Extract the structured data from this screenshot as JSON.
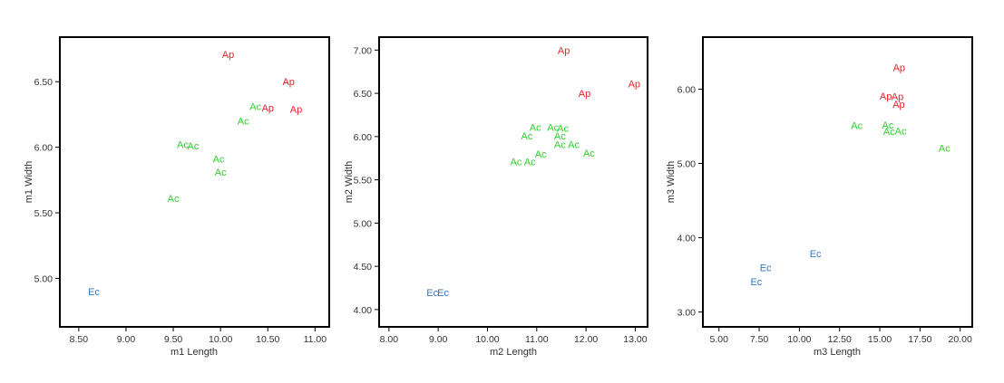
{
  "colors": {
    "Ap": "#e8212a",
    "Ac": "#2ecf2e",
    "Ec": "#2f78c8"
  },
  "chart_data": [
    {
      "type": "scatter",
      "xlabel": "m1 Length",
      "ylabel": "m1 Width",
      "xlim": [
        8.3,
        11.15
      ],
      "ylim": [
        4.63,
        6.84
      ],
      "xticks": [
        8.5,
        9.0,
        9.5,
        10.0,
        10.5,
        11.0
      ],
      "xtick_labels": [
        "8.50",
        "9.00",
        "9.50",
        "10.00",
        "10.50",
        "11.00"
      ],
      "yticks": [
        5.0,
        5.5,
        6.0,
        6.5
      ],
      "ytick_labels": [
        "5.00",
        "5.50",
        "6.00",
        "6.50"
      ],
      "points": [
        {
          "label": "Ap",
          "x": 10.08,
          "y": 6.71
        },
        {
          "label": "Ap",
          "x": 10.72,
          "y": 6.5
        },
        {
          "label": "Ap",
          "x": 10.5,
          "y": 6.3
        },
        {
          "label": "Ap",
          "x": 10.8,
          "y": 6.29
        },
        {
          "label": "Ac",
          "x": 10.37,
          "y": 6.31
        },
        {
          "label": "Ac",
          "x": 10.24,
          "y": 6.2
        },
        {
          "label": "Ac",
          "x": 9.6,
          "y": 6.02
        },
        {
          "label": "Ac",
          "x": 9.71,
          "y": 6.01
        },
        {
          "label": "Ac",
          "x": 9.98,
          "y": 5.91
        },
        {
          "label": "Ac",
          "x": 10.0,
          "y": 5.81
        },
        {
          "label": "Ac",
          "x": 9.5,
          "y": 5.61
        },
        {
          "label": "Ec",
          "x": 8.66,
          "y": 4.9
        }
      ]
    },
    {
      "type": "scatter",
      "xlabel": "m2 Length",
      "ylabel": "m2 Width",
      "xlim": [
        7.8,
        13.25
      ],
      "ylim": [
        3.8,
        7.15
      ],
      "xticks": [
        8,
        9,
        10,
        11,
        12,
        13
      ],
      "xtick_labels": [
        "8.00",
        "9.00",
        "10.00",
        "11.00",
        "12.00",
        "13.00"
      ],
      "yticks": [
        4.0,
        4.5,
        5.0,
        5.5,
        6.0,
        6.5,
        7.0
      ],
      "ytick_labels": [
        "4.00",
        "4.50",
        "5.00",
        "5.50",
        "6.00",
        "6.50",
        "7.00"
      ],
      "points": [
        {
          "label": "Ap",
          "x": 11.55,
          "y": 7.0
        },
        {
          "label": "Ap",
          "x": 12.98,
          "y": 6.61
        },
        {
          "label": "Ap",
          "x": 11.97,
          "y": 6.5
        },
        {
          "label": "Ac",
          "x": 10.97,
          "y": 6.11
        },
        {
          "label": "Ac",
          "x": 11.33,
          "y": 6.11
        },
        {
          "label": "Ac",
          "x": 11.53,
          "y": 6.1
        },
        {
          "label": "Ac",
          "x": 10.8,
          "y": 6.01
        },
        {
          "label": "Ac",
          "x": 11.47,
          "y": 6.01
        },
        {
          "label": "Ac",
          "x": 11.47,
          "y": 5.91
        },
        {
          "label": "Ac",
          "x": 11.75,
          "y": 5.91
        },
        {
          "label": "Ac",
          "x": 11.08,
          "y": 5.8
        },
        {
          "label": "Ac",
          "x": 12.06,
          "y": 5.81
        },
        {
          "label": "Ac",
          "x": 10.58,
          "y": 5.71
        },
        {
          "label": "Ac",
          "x": 10.86,
          "y": 5.71
        },
        {
          "label": "Ec",
          "x": 8.88,
          "y": 4.2
        },
        {
          "label": "Ec",
          "x": 9.1,
          "y": 4.2
        }
      ]
    },
    {
      "type": "scatter",
      "xlabel": "m3 Length",
      "ylabel": "m3 Width",
      "xlim": [
        4.0,
        20.75
      ],
      "ylim": [
        2.8,
        6.7
      ],
      "xticks": [
        5.0,
        7.5,
        10.0,
        12.5,
        15.0,
        17.5,
        20.0
      ],
      "xtick_labels": [
        "5.00",
        "7.50",
        "10.00",
        "12.50",
        "15.00",
        "17.50",
        "20.00"
      ],
      "yticks": [
        3.0,
        4.0,
        5.0,
        6.0
      ],
      "ytick_labels": [
        "3.00",
        "4.00",
        "5.00",
        "6.00"
      ],
      "points": [
        {
          "label": "Ap",
          "x": 16.2,
          "y": 6.29
        },
        {
          "label": "Ap",
          "x": 15.37,
          "y": 5.91
        },
        {
          "label": "Ap",
          "x": 16.1,
          "y": 5.9
        },
        {
          "label": "Ap",
          "x": 16.18,
          "y": 5.8
        },
        {
          "label": "Ac",
          "x": 13.57,
          "y": 5.51
        },
        {
          "label": "Ac",
          "x": 15.5,
          "y": 5.52
        },
        {
          "label": "Ac",
          "x": 15.58,
          "y": 5.43
        },
        {
          "label": "Ac",
          "x": 16.3,
          "y": 5.44
        },
        {
          "label": "Ac",
          "x": 19.02,
          "y": 5.21
        },
        {
          "label": "Ec",
          "x": 11.0,
          "y": 3.79
        },
        {
          "label": "Ec",
          "x": 7.9,
          "y": 3.6
        },
        {
          "label": "Ec",
          "x": 7.32,
          "y": 3.41
        }
      ]
    }
  ]
}
